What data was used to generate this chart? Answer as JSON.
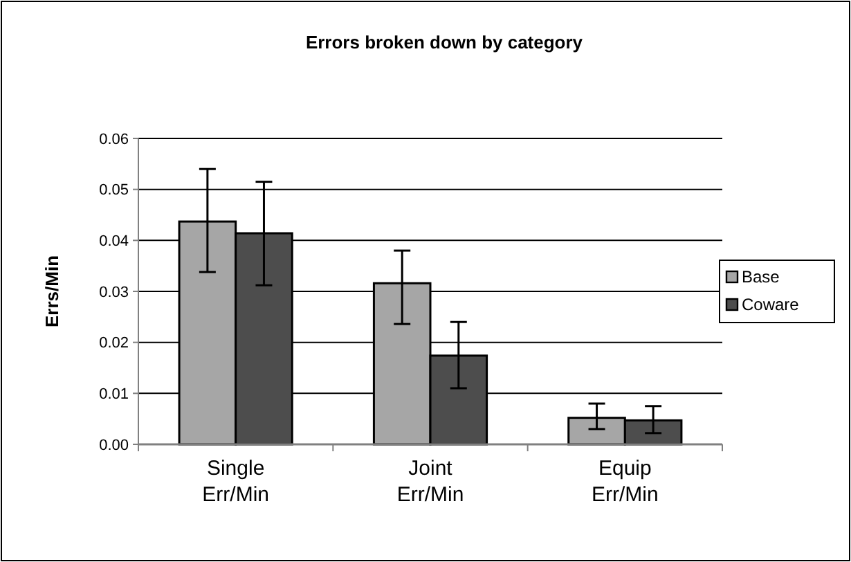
{
  "chart_data": {
    "type": "bar",
    "title": "Errors broken down by category",
    "ylabel": "Errs/Min",
    "categories": [
      "Single Err/Min",
      "Joint Err/Min",
      "Equip Err/Min"
    ],
    "series": [
      {
        "name": "Base",
        "color": "#a6a6a6",
        "values": [
          0.0437,
          0.0316,
          0.0052
        ],
        "errors": [
          [
            0.0338,
            0.054
          ],
          [
            0.0236,
            0.038
          ],
          [
            0.003,
            0.008
          ]
        ]
      },
      {
        "name": "Coware",
        "color": "#4d4d4d",
        "values": [
          0.0414,
          0.0174,
          0.0047
        ],
        "errors": [
          [
            0.0312,
            0.0515
          ],
          [
            0.011,
            0.024
          ],
          [
            0.0022,
            0.0075
          ]
        ]
      }
    ],
    "ylim": [
      0,
      0.06
    ],
    "yticks": [
      {
        "value": 0,
        "label": "0.00"
      },
      {
        "value": 0.01,
        "label": "0.01"
      },
      {
        "value": 0.02,
        "label": "0.02"
      },
      {
        "value": 0.03,
        "label": "0.03"
      },
      {
        "value": 0.04,
        "label": "0.04"
      },
      {
        "value": 0.05,
        "label": "0.05"
      },
      {
        "value": 0.06,
        "label": "0.06"
      }
    ],
    "grid": "y",
    "legend": "right"
  }
}
